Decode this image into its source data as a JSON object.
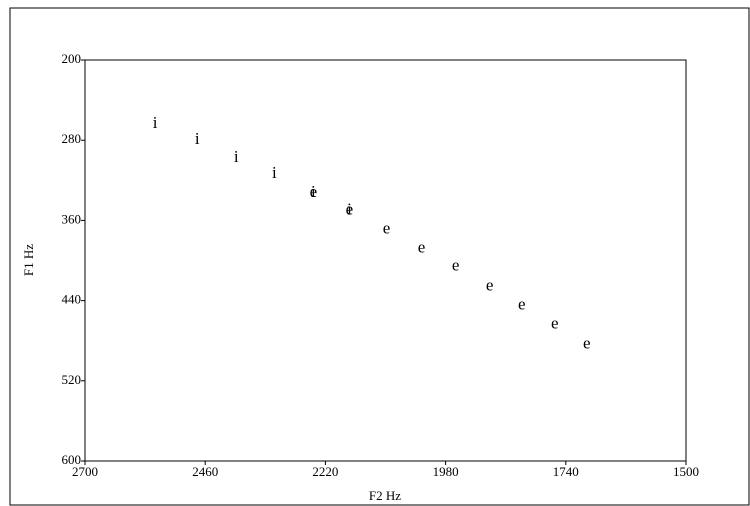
{
  "chart_data": {
    "type": "scatter",
    "xlabel": "F2  Hz",
    "ylabel": "F1  Hz",
    "xlim": [
      2700,
      1500
    ],
    "ylim": [
      200,
      600
    ],
    "xticks": [
      2700,
      2460,
      2220,
      1980,
      1740,
      1500
    ],
    "yticks": [
      200,
      280,
      360,
      440,
      520,
      600
    ],
    "series": [
      {
        "name": "i",
        "color": "#000000",
        "x": [
          2560,
          2476,
          2398,
          2322,
          2244,
          2172
        ],
        "y": [
          264,
          280,
          298,
          314,
          333,
          350
        ]
      },
      {
        "name": "e",
        "color": "#000000",
        "x": [
          2244,
          2172,
          2098,
          2028,
          1960,
          1892,
          1828,
          1762,
          1698
        ],
        "y": [
          333,
          350,
          369,
          388,
          406,
          426,
          445,
          464,
          484
        ]
      }
    ]
  }
}
